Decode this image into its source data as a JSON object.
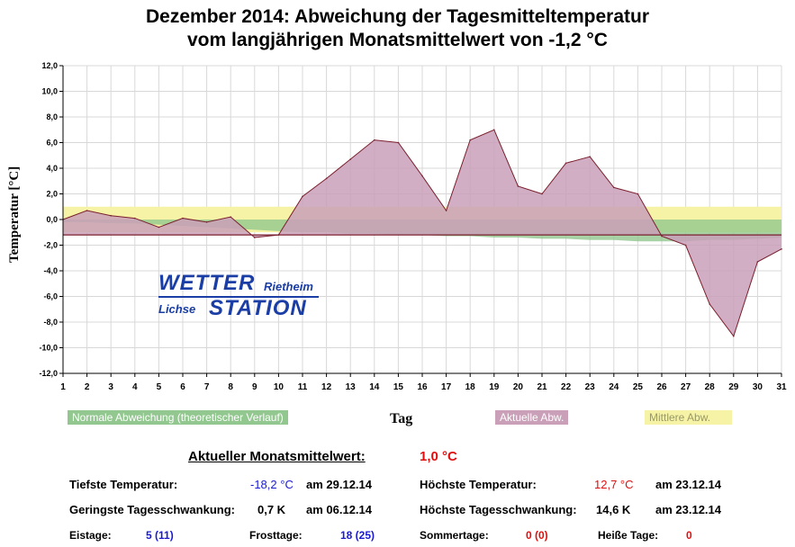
{
  "title_line1": "Dezember 2014: Abweichung der Tagesmitteltemperatur",
  "title_line2": "vom langjährigen Monatsmittelwert von -1,2 °C",
  "colors": {
    "actual": "#c9a0b8",
    "actual_line": "#7a1f2e",
    "normal": "#92c78f",
    "mean_band": "#f7f3a6",
    "grid": "#d8d8d8",
    "blue": "#1a1ad6",
    "red": "#e01010"
  },
  "chart_data": {
    "type": "area",
    "title": "Dezember 2014: Abweichung der Tagesmitteltemperatur vom langjährigen Monatsmittelwert von -1,2 °C",
    "xlabel": "Tag",
    "ylabel": "Temperatur [°C]",
    "ylim": [
      -12,
      12
    ],
    "yticks": [
      "12,0",
      "10,0",
      "8,0",
      "6,0",
      "4,0",
      "2,0",
      "0,0",
      "-2,0",
      "-4,0",
      "-6,0",
      "-8,0",
      "-10,0",
      "-12,0"
    ],
    "x": [
      1,
      2,
      3,
      4,
      5,
      6,
      7,
      8,
      9,
      10,
      11,
      12,
      13,
      14,
      15,
      16,
      17,
      18,
      19,
      20,
      21,
      22,
      23,
      24,
      25,
      26,
      27,
      28,
      29,
      30,
      31
    ],
    "baseline": -1.2,
    "series": [
      {
        "name": "Aktuelle Abw.",
        "values": [
          0.0,
          0.7,
          0.3,
          0.1,
          -0.6,
          0.1,
          -0.2,
          0.2,
          -1.4,
          -1.2,
          1.8,
          3.2,
          4.7,
          6.2,
          6.0,
          3.4,
          0.7,
          6.2,
          7.0,
          2.6,
          2.0,
          4.4,
          4.9,
          2.5,
          2.0,
          -1.3,
          -2.0,
          -6.6,
          -9.1,
          -3.3,
          -2.3
        ]
      },
      {
        "name": "Normale Abweichung (theoretischer Verlauf)",
        "values": [
          -0.2,
          -0.2,
          -0.3,
          -0.3,
          -0.4,
          -0.5,
          -0.6,
          -0.7,
          -0.8,
          -0.9,
          -1.0,
          -1.0,
          -1.1,
          -1.1,
          -1.2,
          -1.2,
          -1.3,
          -1.3,
          -1.4,
          -1.4,
          -1.5,
          -1.5,
          -1.6,
          -1.6,
          -1.7,
          -1.7,
          -1.7,
          -1.6,
          -1.6,
          -1.5,
          -1.4
        ]
      },
      {
        "name": "Mittlere Abw.",
        "range": [
          -1.0,
          1.0
        ]
      }
    ]
  },
  "legend": {
    "normal": "Normale Abweichung (theoretischer Verlauf)",
    "actual": "Aktuelle Abw.",
    "mean": "Mittlere Abw."
  },
  "logo": {
    "wetter": "WETTER",
    "station": "STATION",
    "rietheim": "Rietheim",
    "lichse": "Lichse"
  },
  "stats": {
    "monthly_label": "Aktueller Monatsmittelwert:",
    "monthly_value": "1,0 °C",
    "min_temp_label": "Tiefste Temperatur:",
    "min_temp_value": "-18,2 °C",
    "min_temp_date": "am 29.12.14",
    "max_temp_label": "Höchste Temperatur:",
    "max_temp_value": "12,7 °C",
    "max_temp_date": "am 23.12.14",
    "min_swing_label": "Geringste Tagesschwankung:",
    "min_swing_value": "0,7 K",
    "min_swing_date": "am 06.12.14",
    "max_swing_label": "Höchste Tagesschwankung:",
    "max_swing_value": "14,6 K",
    "max_swing_date": "am 23.12.14",
    "ice_label": "Eistage:",
    "ice_value": "5 (11)",
    "frost_label": "Frosttage:",
    "frost_value": "18 (25)",
    "summer_label": "Sommertage:",
    "summer_value": "0 (0)",
    "hot_label": "Heiße Tage:",
    "hot_value": "0"
  }
}
